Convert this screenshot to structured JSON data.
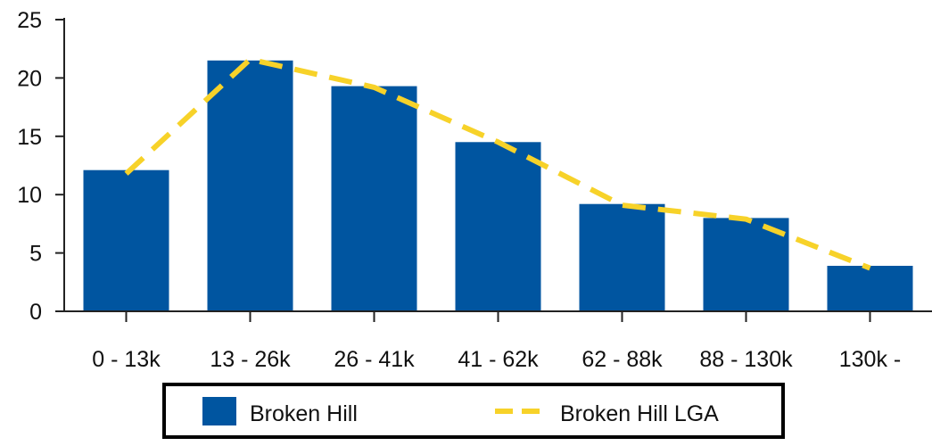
{
  "chart_data": {
    "type": "bar",
    "categories": [
      "0 - 13k",
      "13 - 26k",
      "26 - 41k",
      "41 - 62k",
      "62 - 88k",
      "88 - 130k",
      "130k -"
    ],
    "series": [
      {
        "name": "Broken Hill",
        "type": "bar",
        "color": "#0055a0",
        "values": [
          12.1,
          21.5,
          19.3,
          14.5,
          9.2,
          8.0,
          3.9
        ]
      },
      {
        "name": "Broken Hill LGA",
        "type": "line",
        "style": "dashed",
        "color": "#f7d229",
        "values": [
          11.8,
          21.6,
          19.2,
          14.5,
          9.1,
          7.9,
          3.7
        ]
      }
    ],
    "title": "",
    "xlabel": "",
    "ylabel": "",
    "ylim": [
      0,
      25
    ],
    "yticks": [
      0,
      5,
      10,
      15,
      20,
      25
    ],
    "grid": false,
    "legend_position": "bottom"
  }
}
